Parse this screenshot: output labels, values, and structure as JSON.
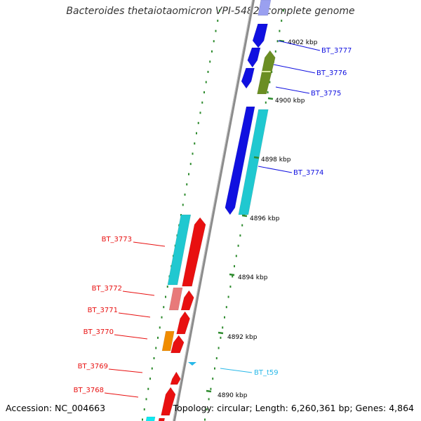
{
  "title": "Bacteroides thetaiotaomicron VPI-5482, complete genome",
  "footer": {
    "accession": "Accession: NC_004663",
    "summary": "Topology: circular; Length: 6,260,361 bp; Genes: 4,864"
  },
  "colors": {
    "backbone": "#8c8c8c",
    "tick": "#2e8b2e",
    "blue": "#1010e0",
    "cyan": "#20c8d0",
    "olive": "#6b8e23",
    "red": "#e81010",
    "pink": "#e87a7a",
    "orange": "#f08c00",
    "lightblue": "#28b8e8"
  },
  "ticks": [
    {
      "label": "4902 kbp"
    },
    {
      "label": "4900 kbp"
    },
    {
      "label": "4898 kbp"
    },
    {
      "label": "4896 kbp"
    },
    {
      "label": "4894 kbp"
    },
    {
      "label": "4892 kbp"
    },
    {
      "label": "4890 kbp"
    }
  ],
  "genes": [
    {
      "name": "BT_3777",
      "color_key": "blue"
    },
    {
      "name": "BT_3776",
      "color_key": "blue"
    },
    {
      "name": "BT_3775",
      "color_key": "blue"
    },
    {
      "name": "BT_3774",
      "color_key": "blue"
    },
    {
      "name": "BT_3773",
      "color_key": "red"
    },
    {
      "name": "BT_3772",
      "color_key": "red"
    },
    {
      "name": "BT_3771",
      "color_key": "red"
    },
    {
      "name": "BT_3770",
      "color_key": "red"
    },
    {
      "name": "BT_t59",
      "color_key": "lightblue"
    },
    {
      "name": "BT_3769",
      "color_key": "red"
    },
    {
      "name": "BT_3768",
      "color_key": "red"
    }
  ]
}
